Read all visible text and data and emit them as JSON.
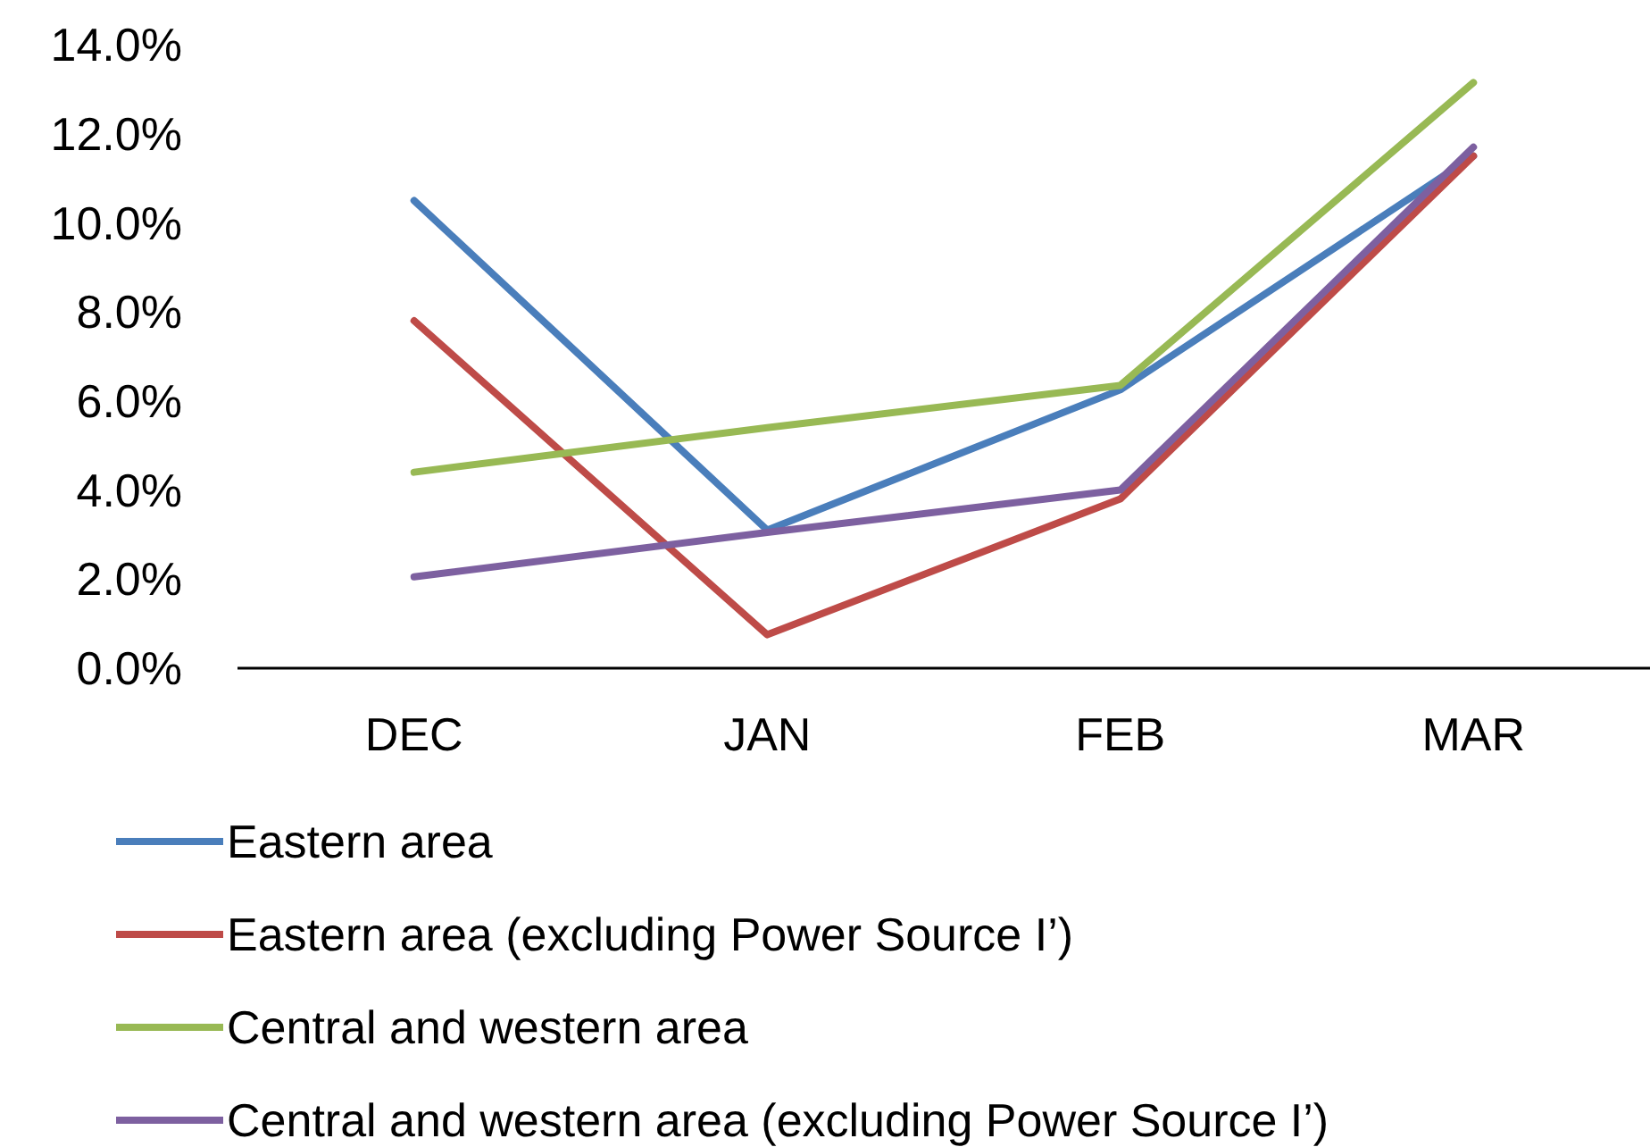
{
  "chart_data": {
    "type": "line",
    "categories": [
      "DEC",
      "JAN",
      "FEB",
      "MAR"
    ],
    "series": [
      {
        "name": "Eastern area",
        "color": "#4a7ebb",
        "values": [
          10.5,
          3.1,
          6.25,
          11.5
        ]
      },
      {
        "name": "Eastern area (excluding Power Source I’)",
        "color": "#be4b48",
        "values": [
          7.8,
          0.75,
          3.8,
          11.5
        ]
      },
      {
        "name": "Central and western area",
        "color": "#98b954",
        "values": [
          4.4,
          5.4,
          6.35,
          13.15
        ]
      },
      {
        "name": "Central and western area (excluding Power Source I’)",
        "color": "#7d60a0",
        "values": [
          2.05,
          3.05,
          4.0,
          11.7
        ]
      }
    ],
    "ylim": [
      0,
      14
    ],
    "yticks": [
      {
        "value": 0,
        "label": "0.0%"
      },
      {
        "value": 2,
        "label": "2.0%"
      },
      {
        "value": 4,
        "label": "4.0%"
      },
      {
        "value": 6,
        "label": "6.0%"
      },
      {
        "value": 8,
        "label": "8.0%"
      },
      {
        "value": 10,
        "label": "10.0%"
      },
      {
        "value": 12,
        "label": "12.0%"
      },
      {
        "value": 14,
        "label": "14.0%"
      }
    ],
    "grid": false,
    "legend": "bottom",
    "marker": "none",
    "line_style": "solid"
  }
}
